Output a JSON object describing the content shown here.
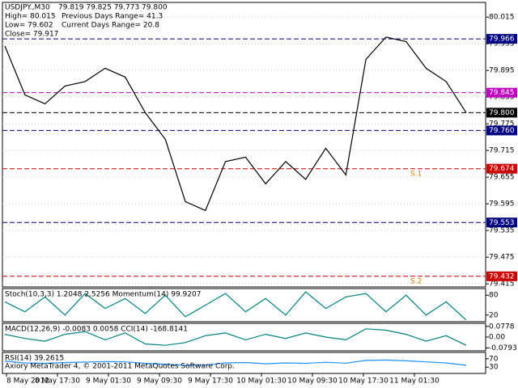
{
  "chart_data": [
    {
      "type": "line",
      "title": "USDJPY.,M30",
      "quote": "79.819 79.825 79.773 79.800",
      "info": [
        "High= 80.015",
        "Previous Days Range= 41.3",
        "Low= 79.602",
        "Current Days Range= 20.8",
        "Close= 79.917"
      ],
      "values": [
        79.95,
        79.84,
        79.82,
        79.86,
        79.87,
        79.9,
        79.88,
        79.8,
        79.74,
        79.6,
        79.58,
        79.69,
        79.7,
        79.64,
        79.69,
        79.65,
        79.72,
        79.66,
        79.92,
        79.97,
        79.96,
        79.9,
        79.87,
        79.8
      ],
      "color": "#000000",
      "ylim": [
        79.408,
        80.048
      ],
      "yticks": [
        80.015,
        79.955,
        79.895,
        79.835,
        79.775,
        79.715,
        79.655,
        79.595,
        79.535,
        79.475,
        79.415
      ],
      "grid": true,
      "levels": [
        {
          "value": 79.966,
          "color": "#000080"
        },
        {
          "value": 79.845,
          "color": "#c000c0"
        },
        {
          "value": 79.8,
          "label": "79.800",
          "color": "#000000"
        },
        {
          "value": 79.76,
          "label": "79.760",
          "color": "#000080"
        },
        {
          "value": 79.674,
          "color": "#cc0000"
        },
        {
          "value": 79.553,
          "color": "#000080"
        },
        {
          "value": 79.432,
          "color": "#cc0000"
        }
      ],
      "annotations": [
        "S.1",
        "S.2"
      ]
    },
    {
      "type": "line",
      "title": "Stoch(10,3,3) 1.2048 2.5256  Momentum(14) 99.9207",
      "values": [
        60,
        30,
        75,
        20,
        85,
        40,
        70,
        25,
        80,
        15,
        50,
        85,
        30,
        70,
        20,
        90,
        40,
        75,
        85,
        30,
        80,
        20,
        60,
        5
      ],
      "color": "#008080",
      "ylim": [
        0,
        100
      ],
      "yticks": [
        80,
        20
      ]
    },
    {
      "type": "line",
      "title": "MACD(12,26,9) -0.0083 0.0058  CCI(14) -168.8141",
      "values": [
        0.02,
        -0.01,
        -0.03,
        0.02,
        0.04,
        -0.02,
        0.03,
        -0.05,
        -0.06,
        -0.04,
        0.01,
        0.03,
        -0.02,
        0.02,
        -0.01,
        0.03,
        0.0,
        -0.02,
        0.06,
        0.05,
        0.02,
        -0.03,
        0.01,
        -0.06
      ],
      "color": "#008080",
      "ylim": [
        -0.1,
        0.1
      ],
      "yticks": [
        0.0778,
        {
          "value": 0,
          "label": "0.00"
        },
        -0.0793
      ]
    },
    {
      "type": "line",
      "title": "RSI(14) 39.2615",
      "values": [
        58,
        50,
        48,
        52,
        54,
        56,
        55,
        48,
        44,
        38,
        40,
        50,
        52,
        46,
        50,
        48,
        53,
        49,
        62,
        64,
        60,
        55,
        50,
        39
      ],
      "color": "#1e90ff",
      "ylim": [
        0,
        100
      ],
      "yticks": [
        70,
        30
      ]
    }
  ],
  "x_labels": [
    "8 May 2012",
    "8 May 17:30",
    "9 May 01:30",
    "9 May 09:30",
    "9 May 17:30",
    "10 May 01:30",
    "10 May 09:30",
    "10 May 17:30",
    "11 May 01:30"
  ],
  "footer": "Axiory MetaTrader 4, © 2001-2011 MetaQuotes Software Corp."
}
